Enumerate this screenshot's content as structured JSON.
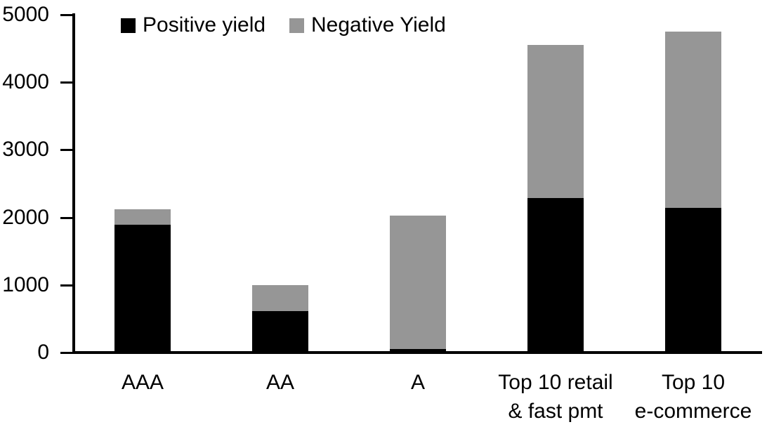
{
  "chart_data": {
    "type": "bar",
    "stacked": true,
    "title": "",
    "categories": [
      "AAA",
      "AA",
      "A",
      "Top 10 retail & fast pmt",
      "Top 10 e-commerce"
    ],
    "category_label_lines": [
      [
        "AAA"
      ],
      [
        "AA"
      ],
      [
        "A"
      ],
      [
        "Top 10 retail",
        "& fast pmt"
      ],
      [
        "Top 10",
        "e-commerce"
      ]
    ],
    "series": [
      {
        "name": "Positive yield",
        "color": "#000000",
        "values": [
          1890,
          615,
          50,
          2290,
          2140
        ]
      },
      {
        "name": "Negative Yield",
        "color": "#969696",
        "values": [
          230,
          385,
          1980,
          2260,
          2610
        ]
      }
    ],
    "totals": [
      2120,
      1000,
      2030,
      4550,
      4750
    ],
    "xlabel": "",
    "ylabel": "",
    "ylim": [
      0,
      5000
    ],
    "ytick_step": 1000,
    "ytick_labels": [
      "0",
      "1000",
      "2000",
      "3000",
      "4000",
      "5000"
    ],
    "legend_position": "top-left",
    "legend_entries": [
      "Positive yield",
      "Negative Yield"
    ],
    "grid": false,
    "axis_color": "#000000",
    "background_color": "#ffffff"
  }
}
